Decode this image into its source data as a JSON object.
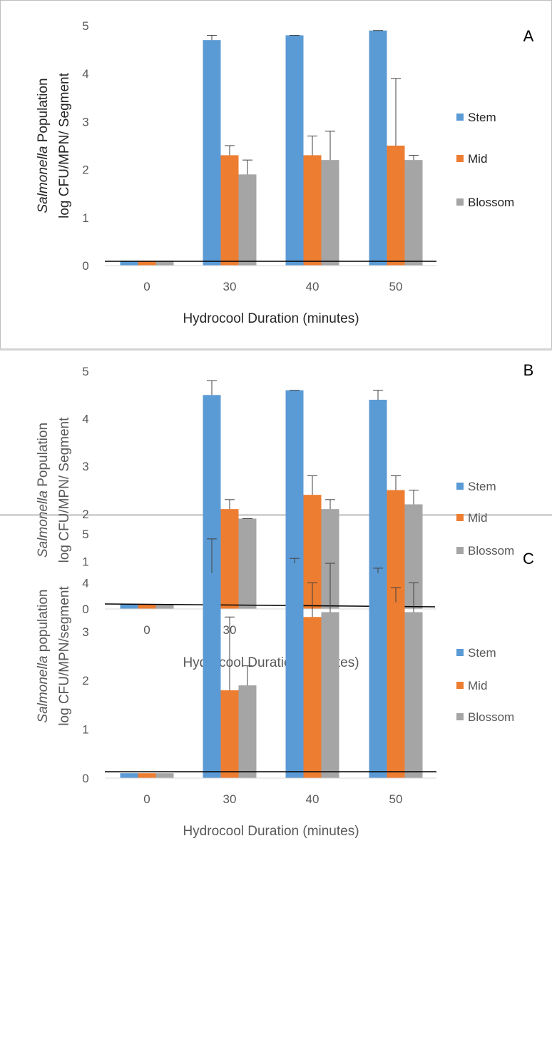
{
  "colors": {
    "stem": "#5b9bd5",
    "mid": "#ed7d31",
    "blossom": "#a5a5a5",
    "axis_text": "#595959",
    "title_text": "#262626",
    "baseline": "#000000"
  },
  "chart_data": [
    {
      "type": "bar",
      "panel_label": "A",
      "categories": [
        "0",
        "30",
        "40",
        "50"
      ],
      "series": [
        {
          "name": "Stem",
          "values": [
            0.1,
            4.7,
            4.8,
            4.9
          ],
          "errors": [
            0,
            0.1,
            0,
            0
          ]
        },
        {
          "name": "Mid",
          "values": [
            0.1,
            2.3,
            2.3,
            2.5
          ],
          "errors": [
            0,
            0.2,
            0.4,
            1.4
          ]
        },
        {
          "name": "Blossom",
          "values": [
            0.1,
            1.9,
            2.2,
            2.2
          ],
          "errors": [
            0,
            0.3,
            0.6,
            0.1
          ]
        }
      ],
      "xlabel": "Hydrocool Duration  (minutes)",
      "ylabel_italic": "Salmonella",
      "ylabel_rest": " Population",
      "ylabel_line2": "log CFU/MPN/ Segment",
      "ylim": [
        0,
        5
      ],
      "yticks": [
        "0",
        "1",
        "2",
        "3",
        "4",
        "5"
      ],
      "detection_limit": 0.1,
      "legend_position": "right",
      "grid": false
    },
    {
      "type": "bar",
      "panel_label": "B",
      "categories": [
        "0",
        "30",
        "40",
        "50"
      ],
      "series": [
        {
          "name": "Stem",
          "values": [
            0.1,
            4.5,
            4.6,
            4.4
          ],
          "errors": [
            0,
            0.3,
            0,
            0.2
          ]
        },
        {
          "name": "Mid",
          "values": [
            0.1,
            2.1,
            2.4,
            2.5
          ],
          "errors": [
            0,
            0.2,
            0.4,
            0.3
          ]
        },
        {
          "name": "Blossom",
          "values": [
            0.1,
            1.9,
            2.1,
            2.2
          ],
          "errors": [
            0,
            0,
            0.2,
            0.3
          ]
        }
      ],
      "xlabel": "Hydrocool Duration (minutes)",
      "ylabel_italic": "Salmonella",
      "ylabel_rest": " Population",
      "ylabel_line2": "log CFU/MPN/ Segment",
      "ylim": [
        0,
        5
      ],
      "yticks": [
        "0",
        "1",
        "2",
        "3",
        "4",
        "5"
      ],
      "detection_limit": 0.1,
      "legend_position": "right",
      "grid": false
    },
    {
      "type": "bar",
      "panel_label": "C",
      "categories": [
        "0",
        "30",
        "40",
        "50"
      ],
      "series": [
        {
          "name": "Stem",
          "values": [
            0.1,
            4.2,
            4.4,
            4.2
          ],
          "errors": [
            0,
            0.7,
            0.1,
            0.1
          ]
        },
        {
          "name": "Mid",
          "values": [
            0.1,
            1.8,
            3.3,
            3.6
          ],
          "errors": [
            0,
            1.5,
            0.7,
            0.3
          ]
        },
        {
          "name": "Blossom",
          "values": [
            0.1,
            1.9,
            3.4,
            3.4
          ],
          "errors": [
            0,
            0.4,
            1.0,
            0.6
          ]
        }
      ],
      "xlabel": "Hydrocool Duration (minutes)",
      "ylabel_italic": "Salmonella",
      "ylabel_rest": " population",
      "ylabel_line2": "log CFU/MPN/segment",
      "ylim": [
        0,
        5
      ],
      "yticks": [
        "0",
        "1",
        "2",
        "3",
        "4",
        "5"
      ],
      "detection_limit": 0.1,
      "legend_position": "right",
      "grid": false
    }
  ]
}
